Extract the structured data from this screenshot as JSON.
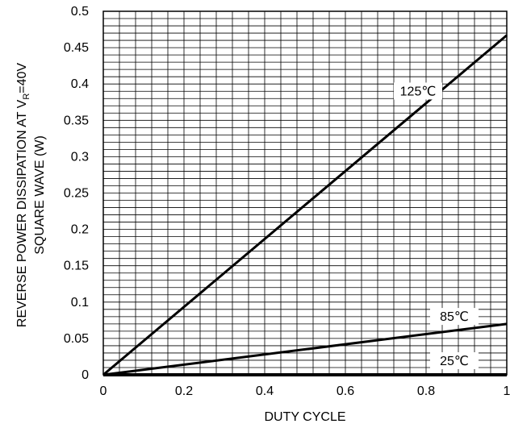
{
  "chart_data": {
    "type": "line",
    "xlabel": "DUTY CYCLE",
    "ylabel_line1": "REVERSE POWER DISSIPATION AT V",
    "ylabel_sub": "R",
    "ylabel_after": "=40V",
    "ylabel_line2": "SQUARE WAVE (W)",
    "xlim": [
      0,
      1
    ],
    "ylim": [
      0,
      0.5
    ],
    "x_ticks": [
      "0",
      "0.2",
      "0.4",
      "0.6",
      "0.8",
      "1"
    ],
    "y_ticks": [
      "0",
      "0.05",
      "0.1",
      "0.15",
      "0.2",
      "0.25",
      "0.3",
      "0.35",
      "0.4",
      "0.45",
      "0.5"
    ],
    "grid": true,
    "series": [
      {
        "name": "125℃",
        "x": [
          0,
          1
        ],
        "y": [
          0,
          0.467
        ]
      },
      {
        "name": "85℃",
        "x": [
          0,
          1
        ],
        "y": [
          0,
          0.07
        ]
      },
      {
        "name": "25℃",
        "x": [
          0,
          1
        ],
        "y": [
          0,
          0
        ]
      }
    ]
  }
}
